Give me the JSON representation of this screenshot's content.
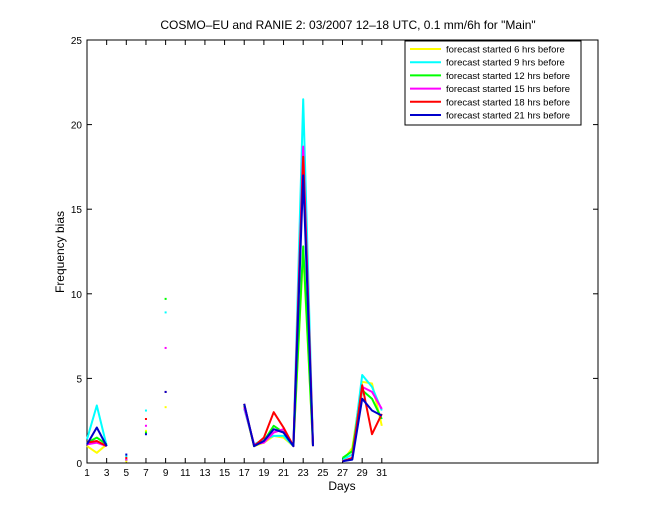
{
  "chart_data": {
    "type": "line",
    "title": "COSMO–EU and RANIE 2: 03/2007 12–18 UTC, 0.1 mm/6h for \"Main\"",
    "xlabel": "Days",
    "ylabel": "Frequency bias",
    "xlim": [
      1,
      53
    ],
    "ylim": [
      0,
      25
    ],
    "xticks": [
      1,
      3,
      5,
      7,
      9,
      11,
      13,
      15,
      17,
      19,
      21,
      23,
      25,
      27,
      29,
      31
    ],
    "yticks": [
      0,
      5,
      10,
      15,
      20,
      25
    ],
    "legend_position": "top-right",
    "series": [
      {
        "name": "forecast started 6 hrs before",
        "color": "#ffff00",
        "points": [
          [
            1,
            1.0
          ],
          [
            2,
            0.6
          ],
          [
            3,
            1.1
          ],
          [
            5,
            0.1
          ],
          [
            7,
            1.9
          ],
          [
            9,
            3.3
          ],
          [
            17,
            3.3
          ],
          [
            18,
            1.0
          ],
          [
            19,
            1.2
          ],
          [
            20,
            1.6
          ],
          [
            21,
            1.5
          ],
          [
            22,
            1.0
          ],
          [
            23,
            12.5
          ],
          [
            24,
            1.0
          ],
          [
            27,
            0.1
          ],
          [
            28,
            0.9
          ],
          [
            29,
            4.8
          ],
          [
            30,
            4.7
          ],
          [
            31,
            2.2
          ]
        ]
      },
      {
        "name": "forecast started 9 hrs before",
        "color": "#00ffff",
        "points": [
          [
            1,
            1.4
          ],
          [
            2,
            3.4
          ],
          [
            3,
            1.0
          ],
          [
            5,
            0.4
          ],
          [
            7,
            3.1
          ],
          [
            9,
            8.9
          ],
          [
            17,
            3.2
          ],
          [
            18,
            1.1
          ],
          [
            19,
            1.4
          ],
          [
            20,
            1.6
          ],
          [
            21,
            1.6
          ],
          [
            22,
            1.0
          ],
          [
            23,
            21.5
          ],
          [
            24,
            1.0
          ],
          [
            27,
            0.2
          ],
          [
            28,
            0.5
          ],
          [
            29,
            5.2
          ],
          [
            30,
            4.5
          ],
          [
            31,
            3.1
          ]
        ]
      },
      {
        "name": "forecast started 12 hrs before",
        "color": "#00ff00",
        "points": [
          [
            1,
            1.2
          ],
          [
            2,
            1.5
          ],
          [
            3,
            1.1
          ],
          [
            5,
            0.2
          ],
          [
            7,
            1.8
          ],
          [
            9,
            9.7
          ],
          [
            17,
            3.4
          ],
          [
            18,
            1.0
          ],
          [
            19,
            1.3
          ],
          [
            20,
            2.2
          ],
          [
            21,
            1.8
          ],
          [
            22,
            1.0
          ],
          [
            23,
            12.8
          ],
          [
            24,
            1.0
          ],
          [
            27,
            0.3
          ],
          [
            28,
            0.7
          ],
          [
            29,
            4.3
          ],
          [
            30,
            3.8
          ],
          [
            31,
            2.6
          ]
        ]
      },
      {
        "name": "forecast started 15 hrs before",
        "color": "#ff00ff",
        "points": [
          [
            1,
            1.1
          ],
          [
            2,
            1.2
          ],
          [
            3,
            1.0
          ],
          [
            5,
            0.2
          ],
          [
            7,
            2.2
          ],
          [
            9,
            6.8
          ],
          [
            17,
            3.3
          ],
          [
            18,
            1.1
          ],
          [
            19,
            1.2
          ],
          [
            20,
            1.8
          ],
          [
            21,
            2.0
          ],
          [
            22,
            1.0
          ],
          [
            23,
            18.7
          ],
          [
            24,
            1.0
          ],
          [
            27,
            0.1
          ],
          [
            28,
            0.3
          ],
          [
            29,
            4.5
          ],
          [
            30,
            4.2
          ],
          [
            31,
            3.2
          ]
        ]
      },
      {
        "name": "forecast started 18 hrs before",
        "color": "#ff0000",
        "points": [
          [
            1,
            1.2
          ],
          [
            2,
            1.3
          ],
          [
            3,
            1.0
          ],
          [
            5,
            0.3
          ],
          [
            7,
            2.6
          ],
          [
            9,
            4.2
          ],
          [
            17,
            3.5
          ],
          [
            18,
            1.0
          ],
          [
            19,
            1.5
          ],
          [
            20,
            3.0
          ],
          [
            21,
            2.1
          ],
          [
            22,
            1.0
          ],
          [
            23,
            18.1
          ],
          [
            24,
            1.0
          ],
          [
            27,
            0.1
          ],
          [
            28,
            0.3
          ],
          [
            29,
            4.6
          ],
          [
            30,
            1.7
          ],
          [
            31,
            2.9
          ]
        ]
      },
      {
        "name": "forecast started 21 hrs before",
        "color": "#0000cc",
        "points": [
          [
            1,
            1.1
          ],
          [
            2,
            2.1
          ],
          [
            3,
            1.0
          ],
          [
            5,
            0.5
          ],
          [
            7,
            1.7
          ],
          [
            9,
            4.2
          ],
          [
            17,
            3.5
          ],
          [
            18,
            1.0
          ],
          [
            19,
            1.3
          ],
          [
            20,
            2.0
          ],
          [
            21,
            1.8
          ],
          [
            22,
            1.0
          ],
          [
            23,
            17.0
          ],
          [
            24,
            1.0
          ],
          [
            27,
            0.1
          ],
          [
            28,
            0.2
          ],
          [
            29,
            3.8
          ],
          [
            30,
            3.1
          ],
          [
            31,
            2.8
          ]
        ]
      }
    ]
  }
}
